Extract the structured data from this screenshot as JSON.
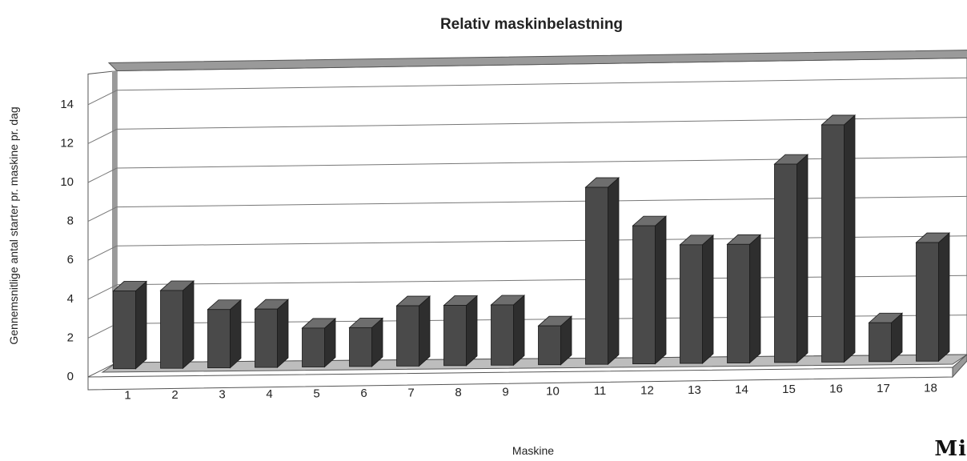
{
  "chart_data": {
    "type": "bar",
    "title": "Relativ maskinbelastning",
    "xlabel": "Maskine",
    "ylabel": "Gennemsnitlige antal starter pr. maskine pr. dag",
    "categories": [
      "1",
      "2",
      "3",
      "4",
      "5",
      "6",
      "7",
      "8",
      "9",
      "10",
      "11",
      "12",
      "13",
      "14",
      "15",
      "16",
      "17",
      "18"
    ],
    "values": [
      4.0,
      4.0,
      3.0,
      3.0,
      2.0,
      2.0,
      3.1,
      3.1,
      3.1,
      2.0,
      9.1,
      7.1,
      6.1,
      6.1,
      10.2,
      12.2,
      2.0,
      6.1
    ],
    "yticks": [
      0,
      2,
      4,
      6,
      8,
      10,
      12,
      14
    ],
    "ylim": [
      0,
      15
    ],
    "grid": true,
    "style": "3d",
    "colors": {
      "bar_front": "#4a4a4a",
      "bar_side": "#2e2e2e",
      "bar_top": "#6e6e6e",
      "wall": "#ffffff",
      "floor": "#bdbdbd",
      "frame": "#9a9a9a",
      "gridline": "#777777"
    }
  },
  "corner_mark": "Mi"
}
